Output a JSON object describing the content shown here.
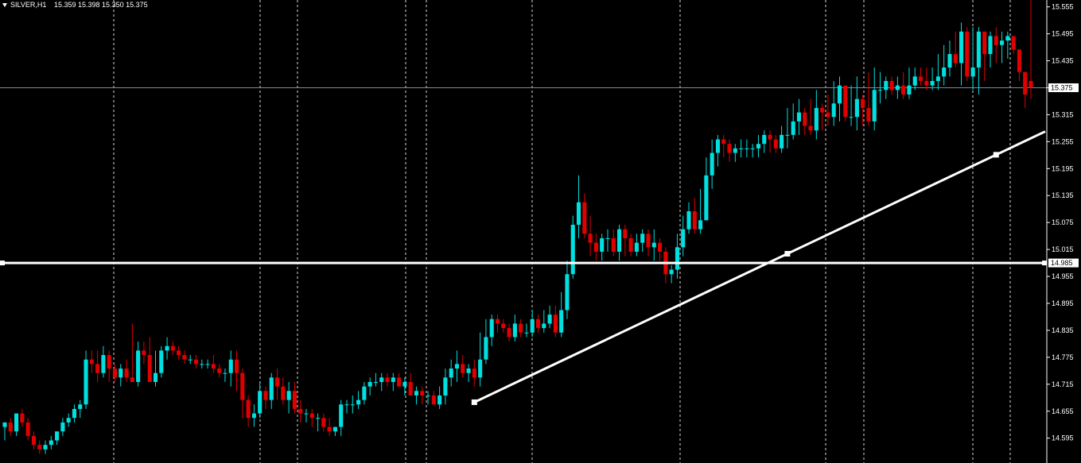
{
  "header": {
    "symbol": "SILVER,H1",
    "ohlc": "15.359 15.398 15.350 15.375"
  },
  "colors": {
    "background": "#000000",
    "bull": "#00e0e0",
    "bear": "#e00000",
    "grid": "#ffffff",
    "trendline": "#ffffff",
    "bid_line": "#7a8aa0",
    "axis_text": "#ffffff"
  },
  "chart_data": {
    "type": "candlestick",
    "symbol": "SILVER",
    "timeframe": "H1",
    "ylim": [
      14.545,
      15.565
    ],
    "yticks": [
      "15.555",
      "15.495",
      "15.435",
      "15.375",
      "15.315",
      "15.255",
      "15.195",
      "15.135",
      "15.075",
      "15.015",
      "14.955",
      "14.895",
      "14.835",
      "14.775",
      "14.715",
      "14.655",
      "14.595",
      "14.535"
    ],
    "current_price": "15.375",
    "horizontal_level": "14.985",
    "candles_open": [
      14.62,
      14.63,
      14.61,
      14.65,
      14.63,
      14.6,
      14.58,
      14.57,
      14.58,
      14.59,
      14.61,
      14.63,
      14.64,
      14.66,
      14.67,
      14.77,
      14.76,
      14.74,
      14.78,
      14.75,
      14.73,
      14.75,
      14.73,
      14.72,
      14.79,
      14.78,
      14.72,
      14.74,
      14.79,
      14.8,
      14.79,
      14.78,
      14.77,
      14.77,
      14.76,
      14.76,
      14.76,
      14.75,
      14.74,
      14.74,
      14.77,
      14.74,
      14.68,
      14.64,
      14.65,
      14.7,
      14.68,
      14.73,
      14.71,
      14.68,
      14.7,
      14.66,
      14.65,
      14.65,
      14.64,
      14.64,
      14.62,
      14.61,
      14.62,
      14.67,
      14.67,
      14.67,
      14.68,
      14.71,
      14.72,
      14.72,
      14.73,
      14.72,
      14.73,
      14.71,
      14.72,
      14.69,
      14.7,
      14.69,
      14.69,
      14.67,
      14.69,
      14.73,
      14.75,
      14.76,
      14.74,
      14.75,
      14.73,
      14.77,
      14.82,
      14.86,
      14.85,
      14.84,
      14.82,
      14.85,
      14.83,
      14.83,
      14.86,
      14.84,
      14.85,
      14.87,
      14.83,
      14.88,
      14.96,
      15.07,
      15.12,
      15.05,
      15.03,
      15.01,
      15.04,
      15.04,
      15.01,
      15.06,
      15.04,
      15.01,
      15.03,
      15.05,
      15.02,
      15.03,
      15.01,
      14.96,
      14.97,
      15.02,
      15.06,
      15.1,
      15.06,
      15.08,
      15.18,
      15.23,
      15.26,
      15.25,
      15.23,
      15.24,
      15.24,
      15.24,
      15.24,
      15.25,
      15.27,
      15.26,
      15.24,
      15.27,
      15.27,
      15.3,
      15.32,
      15.29,
      15.28,
      15.33,
      15.32,
      15.31,
      15.34,
      15.38,
      15.31,
      15.31,
      15.35,
      15.33,
      15.3,
      15.37,
      15.37,
      15.39,
      15.37,
      15.38,
      15.36,
      15.38,
      15.4,
      15.39,
      15.38,
      15.39,
      15.4,
      15.42,
      15.45,
      15.43,
      15.5,
      15.4,
      15.42,
      15.5,
      15.45,
      15.49,
      15.47,
      15.48,
      15.49,
      15.46,
      15.41,
      15.39
    ],
    "candles_high": [
      14.63,
      14.64,
      14.65,
      14.66,
      14.64,
      14.61,
      14.59,
      14.59,
      14.6,
      14.61,
      14.64,
      14.65,
      14.67,
      14.68,
      14.79,
      14.79,
      14.79,
      14.8,
      14.79,
      14.76,
      14.76,
      14.77,
      14.85,
      14.81,
      14.81,
      14.82,
      14.79,
      14.8,
      14.82,
      14.81,
      14.8,
      14.79,
      14.78,
      14.78,
      14.77,
      14.77,
      14.78,
      14.76,
      14.75,
      14.79,
      14.79,
      14.75,
      14.69,
      14.67,
      14.72,
      14.71,
      14.74,
      14.75,
      14.73,
      14.72,
      14.72,
      14.68,
      14.66,
      14.66,
      14.65,
      14.65,
      14.64,
      14.62,
      14.68,
      14.68,
      14.69,
      14.7,
      14.72,
      14.73,
      14.74,
      14.74,
      14.74,
      14.74,
      14.74,
      14.73,
      14.74,
      14.71,
      14.71,
      14.7,
      14.7,
      14.71,
      14.75,
      14.77,
      14.79,
      14.78,
      14.76,
      14.77,
      14.83,
      14.86,
      14.87,
      14.87,
      14.86,
      14.85,
      14.87,
      14.86,
      14.85,
      14.88,
      14.87,
      14.88,
      14.89,
      14.89,
      14.92,
      14.99,
      15.09,
      15.18,
      15.14,
      15.09,
      15.05,
      15.05,
      15.06,
      15.06,
      15.07,
      15.07,
      15.05,
      15.05,
      15.06,
      15.06,
      15.06,
      15.04,
      15.02,
      14.98,
      15.05,
      15.09,
      15.12,
      15.13,
      15.15,
      15.22,
      15.26,
      15.27,
      15.27,
      15.26,
      15.25,
      15.26,
      15.26,
      15.25,
      15.27,
      15.28,
      15.28,
      15.27,
      15.29,
      15.33,
      15.34,
      15.35,
      15.33,
      15.35,
      15.37,
      15.34,
      15.36,
      15.39,
      15.4,
      15.34,
      15.38,
      15.4,
      15.36,
      15.41,
      15.42,
      15.41,
      15.4,
      15.4,
      15.4,
      15.41,
      15.42,
      15.42,
      15.42,
      15.42,
      15.42,
      15.45,
      15.47,
      15.48,
      15.5,
      15.52,
      15.51,
      15.51,
      15.51,
      15.5,
      15.5,
      15.51,
      15.5,
      15.5,
      15.48,
      15.44,
      15.41
    ]
  },
  "chart_data_extra": {
    "candles_low": [
      14.59,
      14.6,
      14.6,
      14.62,
      14.59,
      14.57,
      14.56,
      14.56,
      14.57,
      14.58,
      14.6,
      14.62,
      14.63,
      14.64,
      14.66,
      14.74,
      14.72,
      14.73,
      14.72,
      14.72,
      14.71,
      14.72,
      14.72,
      14.71,
      14.76,
      14.72,
      14.71,
      14.73,
      14.77,
      14.78,
      14.77,
      14.76,
      14.76,
      14.75,
      14.75,
      14.75,
      14.74,
      14.73,
      14.72,
      14.71,
      14.7,
      14.64,
      14.62,
      14.62,
      14.64,
      14.66,
      14.66,
      14.68,
      14.67,
      14.65,
      14.65,
      14.63,
      14.63,
      14.62,
      14.61,
      14.61,
      14.6,
      14.6,
      14.6,
      14.65,
      14.65,
      14.66,
      14.67,
      14.69,
      14.71,
      14.7,
      14.71,
      14.7,
      14.71,
      14.69,
      14.69,
      14.67,
      14.67,
      14.67,
      14.67,
      14.66,
      14.67,
      14.71,
      14.72,
      14.73,
      14.72,
      14.71,
      14.71,
      14.76,
      14.8,
      14.83,
      14.83,
      14.81,
      14.81,
      14.82,
      14.82,
      14.82,
      14.83,
      14.83,
      14.84,
      14.82,
      14.82,
      14.86,
      14.95,
      15.04,
      15.04,
      15.0,
      14.99,
      14.99,
      15.01,
      15.0,
      14.99,
      15.0,
      15.0,
      15.0,
      15.01,
      15.0,
      14.99,
      14.99,
      14.94,
      14.94,
      14.95,
      15.0,
      15.05,
      15.05,
      15.05,
      15.08,
      15.15,
      15.2,
      15.22,
      15.21,
      15.21,
      15.22,
      15.22,
      15.22,
      15.22,
      15.23,
      15.23,
      15.23,
      15.23,
      15.24,
      15.26,
      15.27,
      15.27,
      15.27,
      15.26,
      15.28,
      15.29,
      15.29,
      15.3,
      15.3,
      15.29,
      15.28,
      15.29,
      15.29,
      15.28,
      15.34,
      15.35,
      15.36,
      15.35,
      15.35,
      15.35,
      15.37,
      15.38,
      15.37,
      15.37,
      15.37,
      15.38,
      15.4,
      15.42,
      15.38,
      15.39,
      15.37,
      15.36,
      15.39,
      15.42,
      15.43,
      15.43,
      15.44,
      15.45,
      15.39,
      15.33,
      15.35
    ],
    "candles_close": [
      14.63,
      14.61,
      14.65,
      14.63,
      14.6,
      14.58,
      14.57,
      14.58,
      14.59,
      14.61,
      14.63,
      14.64,
      14.66,
      14.67,
      14.77,
      14.76,
      14.74,
      14.78,
      14.75,
      14.73,
      14.75,
      14.73,
      14.72,
      14.79,
      14.78,
      14.72,
      14.74,
      14.79,
      14.8,
      14.79,
      14.78,
      14.77,
      14.77,
      14.76,
      14.76,
      14.76,
      14.75,
      14.74,
      14.74,
      14.77,
      14.74,
      14.68,
      14.64,
      14.65,
      14.7,
      14.68,
      14.73,
      14.71,
      14.68,
      14.7,
      14.66,
      14.65,
      14.65,
      14.64,
      14.64,
      14.62,
      14.61,
      14.62,
      14.67,
      14.67,
      14.67,
      14.68,
      14.71,
      14.72,
      14.72,
      14.73,
      14.72,
      14.73,
      14.71,
      14.72,
      14.69,
      14.7,
      14.69,
      14.69,
      14.67,
      14.69,
      14.73,
      14.75,
      14.76,
      14.74,
      14.75,
      14.73,
      14.77,
      14.82,
      14.86,
      14.85,
      14.84,
      14.82,
      14.85,
      14.83,
      14.83,
      14.86,
      14.84,
      14.85,
      14.87,
      14.83,
      14.88,
      14.96,
      15.07,
      15.12,
      15.05,
      15.03,
      15.01,
      15.04,
      15.04,
      15.01,
      15.06,
      15.04,
      15.01,
      15.03,
      15.05,
      15.02,
      15.03,
      15.01,
      14.96,
      14.97,
      15.02,
      15.06,
      15.1,
      15.06,
      15.08,
      15.18,
      15.23,
      15.26,
      15.25,
      15.23,
      15.24,
      15.24,
      15.24,
      15.24,
      15.25,
      15.27,
      15.26,
      15.24,
      15.27,
      15.27,
      15.3,
      15.32,
      15.29,
      15.28,
      15.33,
      15.32,
      15.31,
      15.34,
      15.38,
      15.31,
      15.31,
      15.35,
      15.33,
      15.3,
      15.37,
      15.37,
      15.39,
      15.37,
      15.38,
      15.36,
      15.38,
      15.4,
      15.39,
      15.38,
      15.39,
      15.4,
      15.42,
      15.45,
      15.43,
      15.5,
      15.4,
      15.42,
      15.5,
      15.45,
      15.49,
      15.47,
      15.48,
      15.49,
      15.46,
      15.41,
      15.36,
      15.375
    ],
    "trendline": {
      "x1_index": 81,
      "y1": 14.675,
      "x2_index": 206,
      "y2": 15.44
    },
    "trend_anchor_mid_index": 135,
    "trend_anchor_mid_price": 14.965,
    "trend_anchor_far_index": 171,
    "trend_anchor_far_price": 15.255
  }
}
